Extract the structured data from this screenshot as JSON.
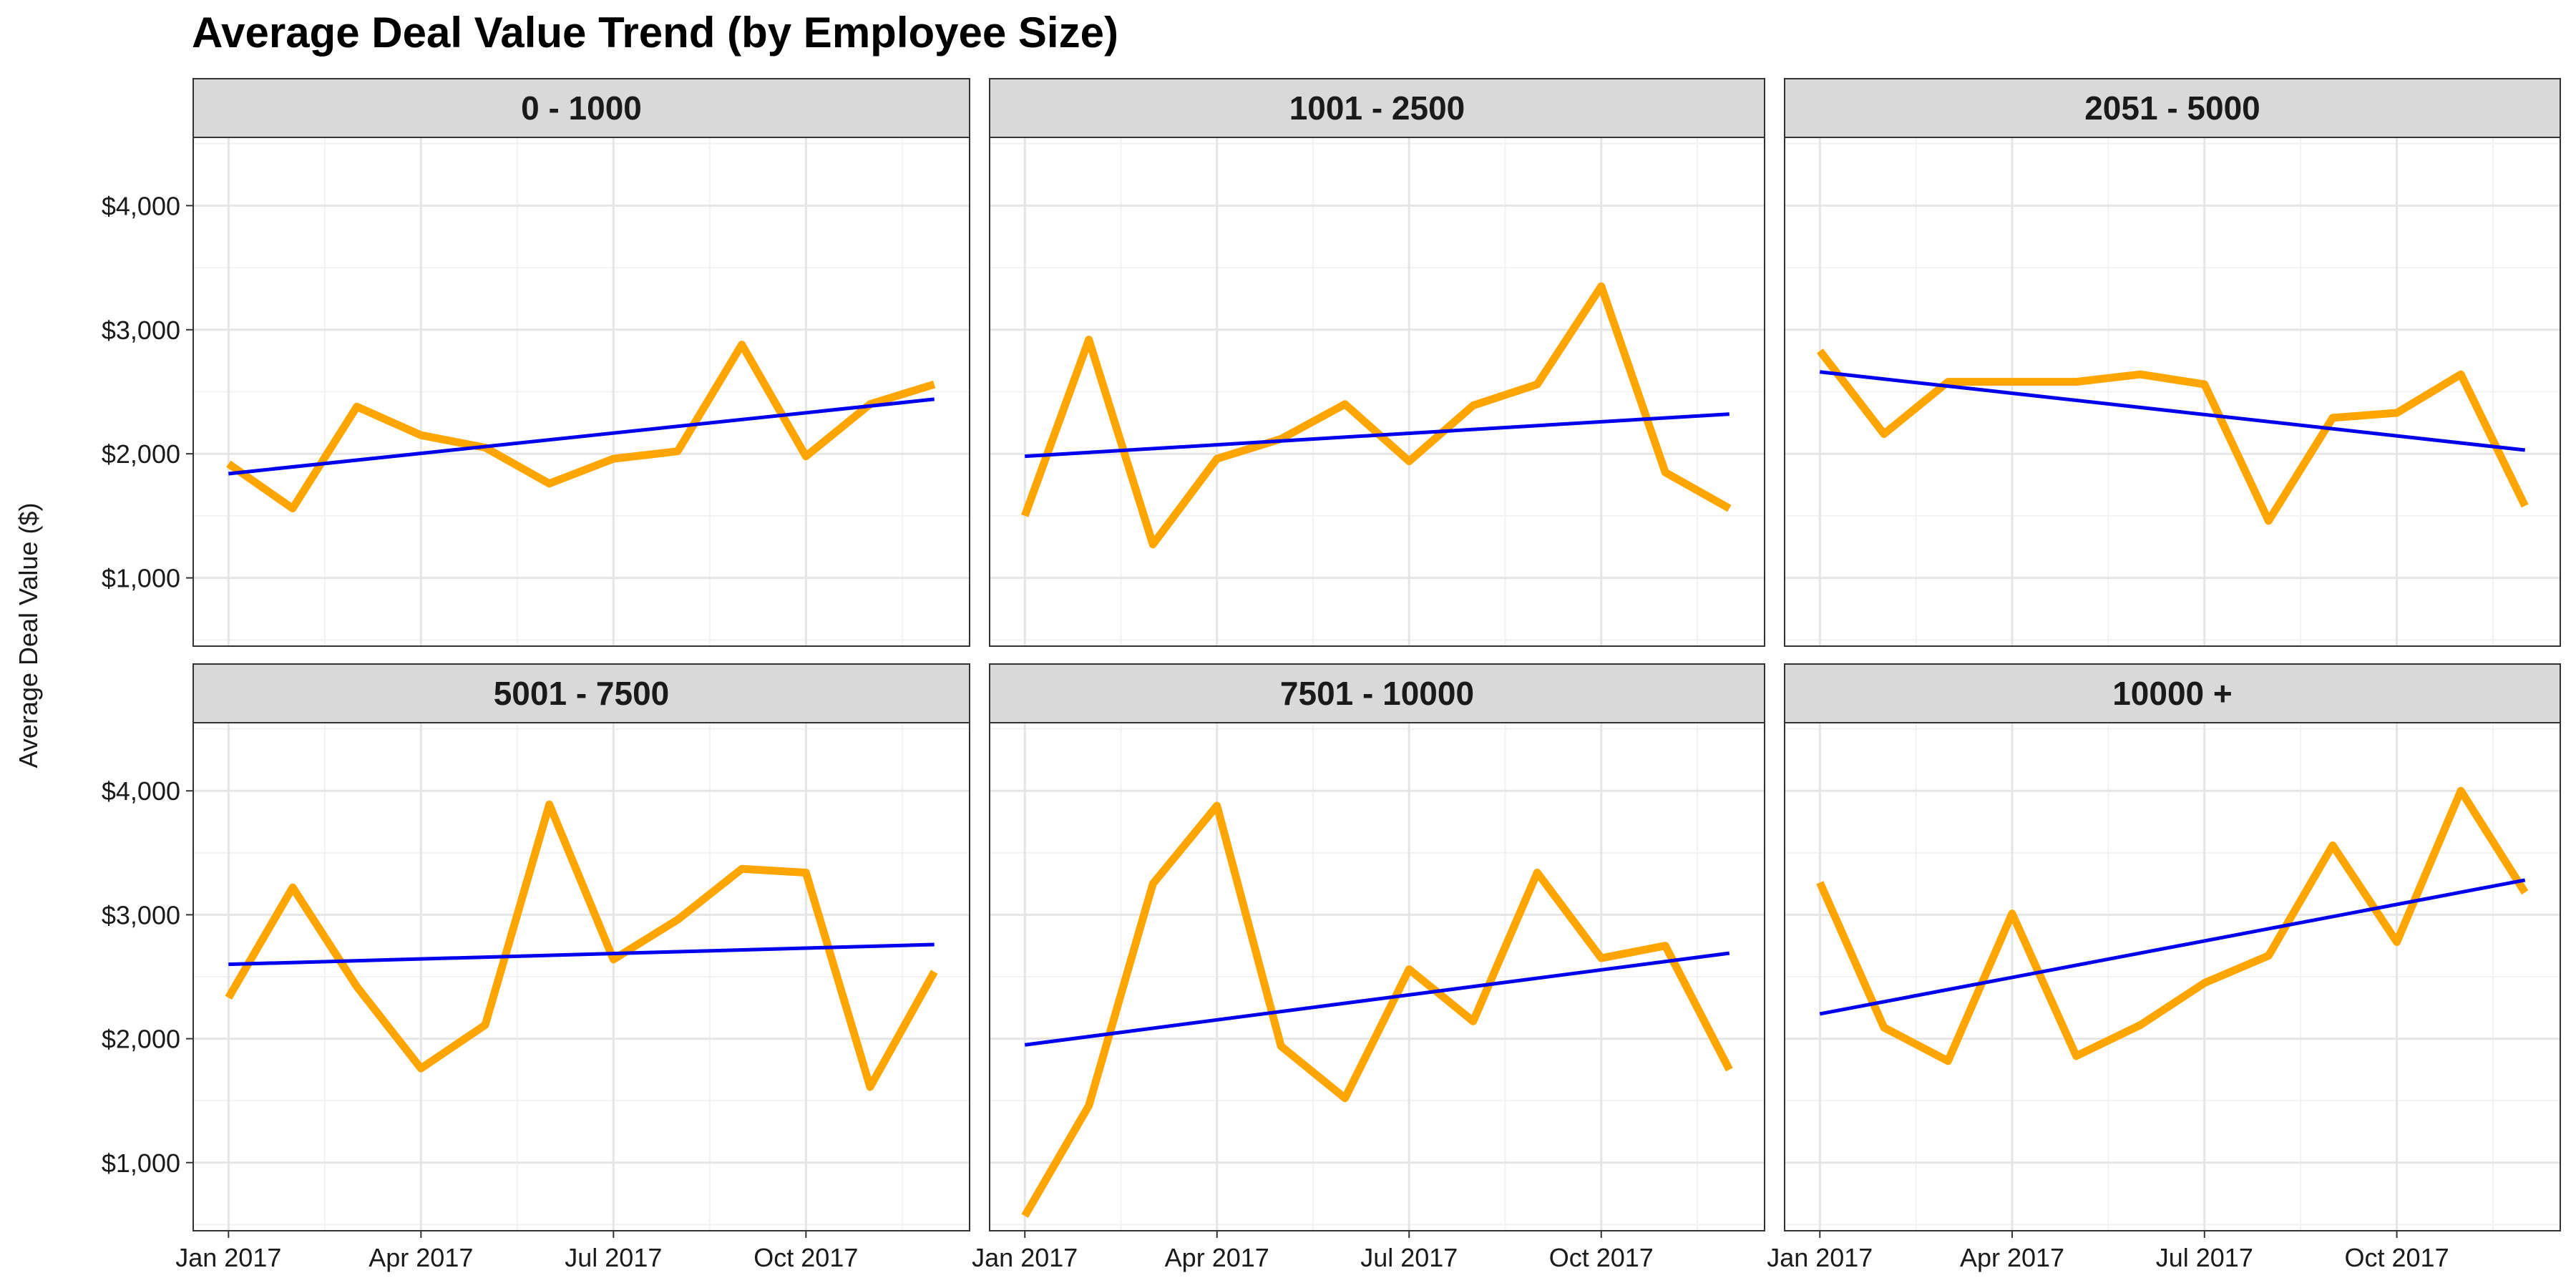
{
  "chart_data": {
    "type": "line",
    "title": "Average Deal Value Trend (by Employee Size)",
    "xlabel": "",
    "ylabel": "Average Deal Value ($)",
    "y_ticks": [
      1000,
      2000,
      3000,
      4000
    ],
    "y_tick_labels": [
      "$1,000",
      "$2,000",
      "$3,000",
      "$4,000"
    ],
    "ylim": [
      450,
      4550
    ],
    "x_tick_labels": [
      "Jan 2017",
      "Apr 2017",
      "Jul 2017",
      "Oct 2017"
    ],
    "x_tick_months": [
      0,
      3,
      6,
      9
    ],
    "xlim": [
      -0.55,
      11.55
    ],
    "months": [
      "2017-01",
      "2017-02",
      "2017-03",
      "2017-04",
      "2017-05",
      "2017-06",
      "2017-07",
      "2017-08",
      "2017-09",
      "2017-10",
      "2017-11",
      "2017-12"
    ],
    "grid": true,
    "line_color": "#FFA500",
    "trend_color": "#0000EE",
    "panels": [
      {
        "label": "0 - 1000",
        "values": [
          1920,
          1560,
          2380,
          2150,
          2050,
          1760,
          1960,
          2020,
          2880,
          1980,
          2400,
          2560
        ],
        "trend": [
          1840,
          2440
        ]
      },
      {
        "label": "1001 - 2500",
        "values": [
          1500,
          2920,
          1270,
          1960,
          2120,
          2400,
          1940,
          2390,
          2560,
          3350,
          1850,
          1560
        ],
        "trend": [
          1980,
          2320
        ]
      },
      {
        "label": "2051 - 5000",
        "values": [
          2830,
          2160,
          2580,
          2580,
          2580,
          2640,
          2560,
          1460,
          2290,
          2330,
          2640,
          1580
        ],
        "trend": [
          2660,
          2030
        ]
      },
      {
        "label": "5001 - 7500",
        "values": [
          2330,
          3220,
          2420,
          1760,
          2110,
          3890,
          2640,
          2960,
          3370,
          3340,
          1610,
          2540
        ],
        "trend": [
          2600,
          2760
        ]
      },
      {
        "label": "7501 - 10000",
        "values": [
          570,
          1460,
          3250,
          3880,
          1940,
          1520,
          2560,
          2140,
          3340,
          2650,
          2750,
          1750
        ],
        "trend": [
          1950,
          2690
        ]
      },
      {
        "label": "10000 +",
        "values": [
          3260,
          2090,
          1820,
          3010,
          1860,
          2110,
          2450,
          2670,
          3560,
          2780,
          4000,
          3180
        ],
        "trend": [
          2200,
          3280
        ]
      }
    ]
  }
}
